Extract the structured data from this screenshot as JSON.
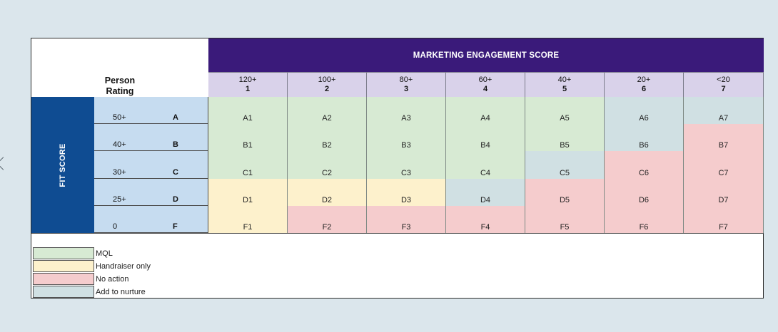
{
  "header": {
    "title": "MARKETING ENGAGEMENT SCORE"
  },
  "person_rating": {
    "line1": "Person",
    "line2": "Rating"
  },
  "fit_score_label": "FIT SCORE",
  "engagement_columns": [
    {
      "score": "120+",
      "num": "1"
    },
    {
      "score": "100+",
      "num": "2"
    },
    {
      "score": "80+",
      "num": "3"
    },
    {
      "score": "60+",
      "num": "4"
    },
    {
      "score": "40+",
      "num": "5"
    },
    {
      "score": "20+",
      "num": "6"
    },
    {
      "score": "<20",
      "num": "7"
    }
  ],
  "rating_rows": [
    {
      "score": "50+",
      "letter": "A"
    },
    {
      "score": "40+",
      "letter": "B"
    },
    {
      "score": "30+",
      "letter": "C"
    },
    {
      "score": "25+",
      "letter": "D"
    },
    {
      "score": "0",
      "letter": "F"
    }
  ],
  "grid": [
    [
      {
        "label": "A1",
        "cat": "mql"
      },
      {
        "label": "A2",
        "cat": "mql"
      },
      {
        "label": "A3",
        "cat": "mql"
      },
      {
        "label": "A4",
        "cat": "mql"
      },
      {
        "label": "A5",
        "cat": "mql"
      },
      {
        "label": "A6",
        "cat": "nur"
      },
      {
        "label": "A7",
        "cat": "nur"
      }
    ],
    [
      {
        "label": "B1",
        "cat": "mql"
      },
      {
        "label": "B2",
        "cat": "mql"
      },
      {
        "label": "B3",
        "cat": "mql"
      },
      {
        "label": "B4",
        "cat": "mql"
      },
      {
        "label": "B5",
        "cat": "mql"
      },
      {
        "label": "B6",
        "cat": "nur"
      },
      {
        "label": "B7",
        "cat": "no"
      }
    ],
    [
      {
        "label": "C1",
        "cat": "mql"
      },
      {
        "label": "C2",
        "cat": "mql"
      },
      {
        "label": "C3",
        "cat": "mql"
      },
      {
        "label": "C4",
        "cat": "mql"
      },
      {
        "label": "C5",
        "cat": "nur"
      },
      {
        "label": "C6",
        "cat": "no"
      },
      {
        "label": "C7",
        "cat": "no"
      }
    ],
    [
      {
        "label": "D1",
        "cat": "hand"
      },
      {
        "label": "D2",
        "cat": "hand"
      },
      {
        "label": "D3",
        "cat": "hand"
      },
      {
        "label": "D4",
        "cat": "nur"
      },
      {
        "label": "D5",
        "cat": "no"
      },
      {
        "label": "D6",
        "cat": "no"
      },
      {
        "label": "D7",
        "cat": "no"
      }
    ],
    [
      {
        "label": "F1",
        "cat": "hand"
      },
      {
        "label": "F2",
        "cat": "no"
      },
      {
        "label": "F3",
        "cat": "no"
      },
      {
        "label": "F4",
        "cat": "no"
      },
      {
        "label": "F5",
        "cat": "no"
      },
      {
        "label": "F6",
        "cat": "no"
      },
      {
        "label": "F7",
        "cat": "no"
      }
    ]
  ],
  "legend": [
    {
      "label": "MQL",
      "cat": "mql"
    },
    {
      "label": "Handraiser only",
      "cat": "hand"
    },
    {
      "label": "No action",
      "cat": "no"
    },
    {
      "label": "Add to nurture",
      "cat": "nur"
    }
  ]
}
